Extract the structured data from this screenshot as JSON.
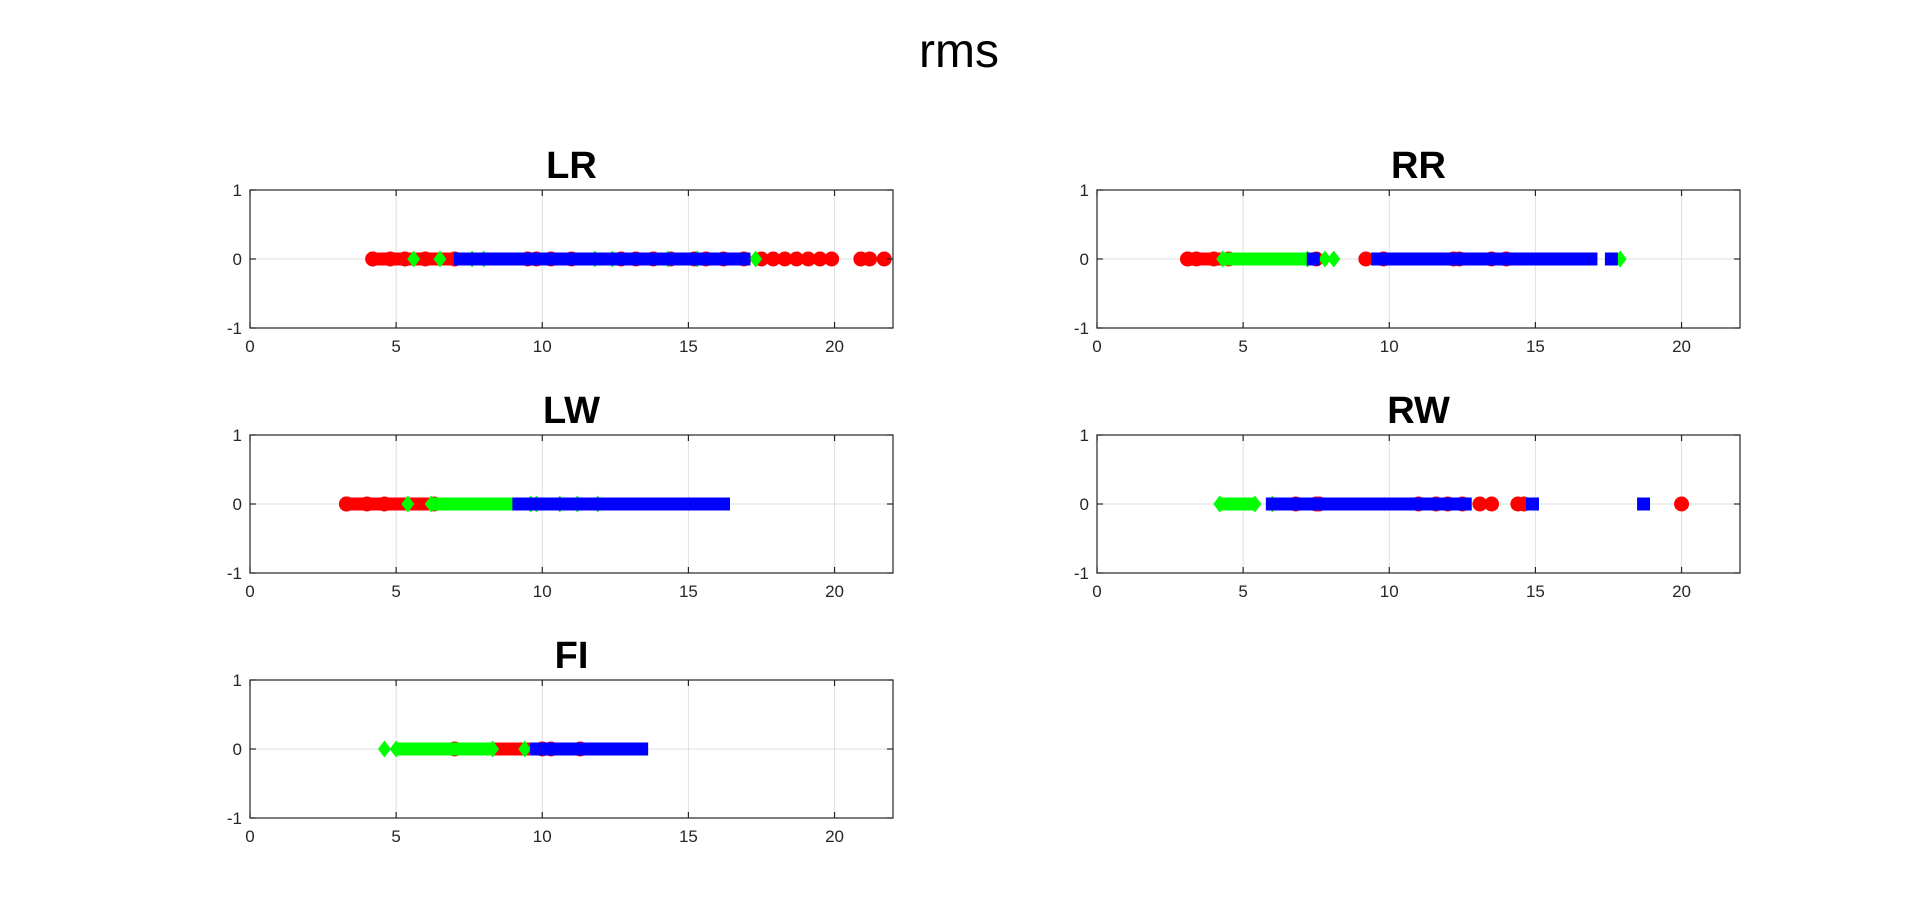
{
  "figure": {
    "title": "rms"
  },
  "colors": {
    "red": "#ff0000",
    "green": "#00ff00",
    "blue": "#0000ff"
  },
  "chart_data": [
    {
      "type": "scatter",
      "title": "LR",
      "xlim": [
        0,
        22
      ],
      "ylim": [
        -1,
        1
      ],
      "xticks": [
        0,
        5,
        10,
        15,
        20
      ],
      "yticks": [
        -1,
        0,
        1
      ],
      "grid": true,
      "series": [
        {
          "marker": "circle",
          "color": "#ff0000",
          "range": [
            4.2,
            9.5
          ],
          "points": [
            4.2,
            4.8,
            5.3,
            6.0,
            7.0,
            9.8,
            10.3,
            11.0,
            12.7,
            13.2,
            13.8,
            14.4,
            15.2,
            15.6,
            16.2,
            16.9,
            17.5,
            17.9,
            18.3,
            18.7,
            19.1,
            19.5,
            19.9,
            20.9,
            21.2,
            21.7
          ]
        },
        {
          "marker": "diamond",
          "color": "#00ff00",
          "range": [
            8.0,
            11.8
          ],
          "points": [
            5.6,
            6.5,
            7.6,
            12.4,
            14.3,
            15.3,
            17.3
          ]
        },
        {
          "marker": "square",
          "color": "#0000ff",
          "range": [
            7.2,
            16.9
          ],
          "points": [
            7.2,
            13.0,
            13.9,
            15.5,
            16.6
          ]
        }
      ]
    },
    {
      "type": "scatter",
      "title": "RR",
      "xlim": [
        0,
        22
      ],
      "ylim": [
        -1,
        1
      ],
      "xticks": [
        0,
        5,
        10,
        15,
        20
      ],
      "yticks": [
        -1,
        0,
        1
      ],
      "grid": true,
      "series": [
        {
          "marker": "circle",
          "color": "#ff0000",
          "range": [
            3.1,
            4.5
          ],
          "points": [
            3.1,
            3.4,
            4.0,
            7.5,
            9.2,
            9.8,
            12.2,
            12.4,
            13.5,
            14.0
          ]
        },
        {
          "marker": "diamond",
          "color": "#00ff00",
          "range": [
            4.3,
            7.2
          ],
          "points": [
            7.8,
            8.1,
            17.9
          ]
        },
        {
          "marker": "square",
          "color": "#0000ff",
          "range": [
            9.7,
            16.9
          ],
          "points": [
            7.4,
            9.6,
            10.3,
            17.6
          ]
        }
      ]
    },
    {
      "type": "scatter",
      "title": "LW",
      "xlim": [
        0,
        22
      ],
      "ylim": [
        -1,
        1
      ],
      "xticks": [
        0,
        5,
        10,
        15,
        20
      ],
      "yticks": [
        -1,
        0,
        1
      ],
      "grid": true,
      "series": [
        {
          "marker": "circle",
          "color": "#ff0000",
          "range": [
            3.3,
            6.3
          ],
          "points": [
            3.3,
            4.0,
            4.6
          ]
        },
        {
          "marker": "diamond",
          "color": "#00ff00",
          "range": [
            6.2,
            9.6
          ],
          "points": [
            5.4,
            9.8,
            10.6,
            11.2,
            11.9
          ]
        },
        {
          "marker": "square",
          "color": "#0000ff",
          "range": [
            9.2,
            16.2
          ],
          "points": []
        }
      ]
    },
    {
      "type": "scatter",
      "title": "RW",
      "xlim": [
        0,
        22
      ],
      "ylim": [
        -1,
        1
      ],
      "xticks": [
        0,
        5,
        10,
        15,
        20
      ],
      "yticks": [
        -1,
        0,
        1
      ],
      "grid": true,
      "series": [
        {
          "marker": "circle",
          "color": "#ff0000",
          "range": [
            7.5,
            11.0
          ],
          "points": [
            6.8,
            7.6,
            11.6,
            12.0,
            12.5,
            13.1,
            13.5,
            14.4,
            14.6,
            20.0
          ]
        },
        {
          "marker": "diamond",
          "color": "#00ff00",
          "range": [
            4.2,
            5.4
          ],
          "points": [
            6.0
          ]
        },
        {
          "marker": "square",
          "color": "#0000ff",
          "range": [
            6.0,
            12.6
          ],
          "points": [
            10.3,
            10.9,
            14.9,
            18.7
          ]
        }
      ]
    },
    {
      "type": "scatter",
      "title": "FI",
      "xlim": [
        0,
        22
      ],
      "ylim": [
        -1,
        1
      ],
      "xticks": [
        0,
        5,
        10,
        15,
        20
      ],
      "yticks": [
        -1,
        0,
        1
      ],
      "grid": true,
      "series": [
        {
          "marker": "circle",
          "color": "#ff0000",
          "range": [
            7.0,
            10.0
          ],
          "points": [
            10.3,
            11.3
          ]
        },
        {
          "marker": "diamond",
          "color": "#00ff00",
          "range": [
            5.0,
            8.3
          ],
          "points": [
            4.6,
            9.4
          ]
        },
        {
          "marker": "square",
          "color": "#0000ff",
          "range": [
            9.8,
            13.4
          ],
          "points": []
        }
      ]
    }
  ]
}
